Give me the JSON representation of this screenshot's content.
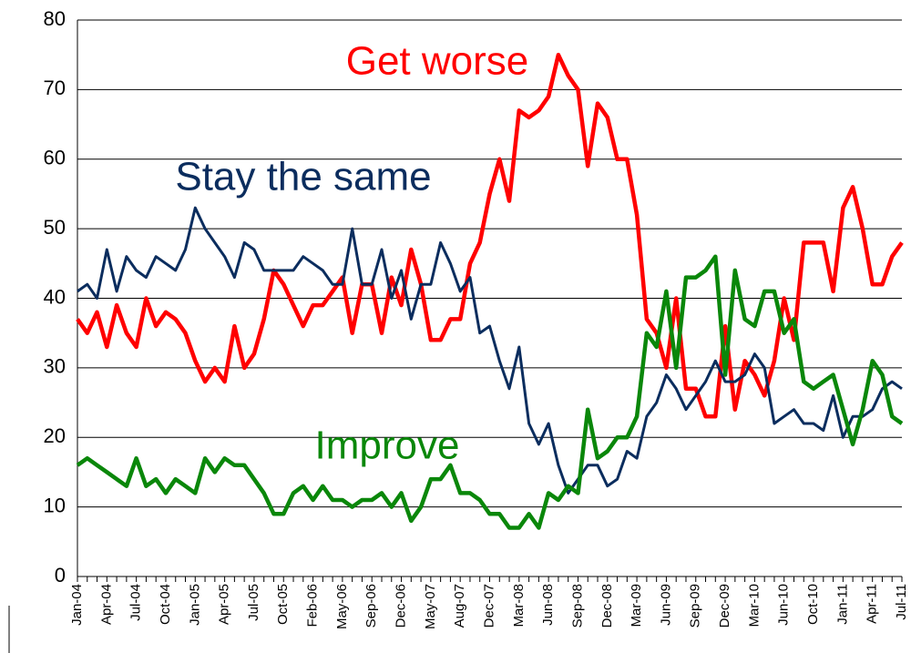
{
  "chart_data": {
    "type": "line",
    "categories": [
      "Jan-04",
      null,
      null,
      "Apr-04",
      null,
      null,
      "Jul-04",
      null,
      null,
      "Oct-04",
      null,
      null,
      "Jan-05",
      null,
      null,
      "Apr-05",
      null,
      null,
      "Jul-05",
      null,
      null,
      "Oct-05",
      null,
      null,
      "Feb-06",
      null,
      null,
      "May-06",
      null,
      null,
      "Sep-06",
      null,
      null,
      "Dec-06",
      null,
      null,
      "May-07",
      null,
      null,
      "Aug-07",
      null,
      null,
      "Dec-07",
      null,
      null,
      "Mar-08",
      null,
      null,
      "Jun-08",
      null,
      null,
      "Sep-08",
      null,
      null,
      "Dec-08",
      null,
      null,
      "Mar-09",
      null,
      null,
      "Jun-09",
      null,
      null,
      "Sep-09",
      null,
      null,
      "Dec-09",
      null,
      null,
      "Mar-10",
      null,
      null,
      "Jun-10",
      null,
      null,
      "Oct-10",
      null,
      null,
      "Jan-11",
      null,
      null,
      "Apr-11",
      null,
      null,
      "Jul-11"
    ],
    "series": [
      {
        "name": "Get worse",
        "color": "#ff0000",
        "values": [
          37,
          35,
          38,
          33,
          39,
          35,
          33,
          40,
          36,
          38,
          37,
          35,
          31,
          28,
          30,
          28,
          36,
          30,
          32,
          37,
          44,
          42,
          39,
          36,
          39,
          39,
          41,
          43,
          35,
          42,
          42,
          35,
          43,
          39,
          47,
          42,
          34,
          34,
          37,
          37,
          45,
          48,
          55,
          60,
          54,
          67,
          66,
          67,
          69,
          75,
          72,
          70,
          59,
          68,
          66,
          60,
          60,
          52,
          37,
          35,
          30,
          40,
          27,
          27,
          23,
          23,
          36,
          24,
          31,
          29,
          26,
          31,
          40,
          34,
          48,
          48,
          48,
          41,
          53,
          56,
          50,
          42,
          42,
          46,
          48
        ]
      },
      {
        "name": "Stay the same",
        "color": "#0b2d5e",
        "values": [
          41,
          42,
          40,
          47,
          41,
          46,
          44,
          43,
          46,
          45,
          44,
          47,
          53,
          50,
          48,
          46,
          43,
          48,
          47,
          44,
          44,
          44,
          44,
          46,
          45,
          44,
          42,
          42,
          50,
          42,
          42,
          47,
          40,
          44,
          37,
          42,
          42,
          48,
          45,
          41,
          43,
          35,
          36,
          31,
          27,
          33,
          22,
          19,
          22,
          16,
          12,
          14,
          16,
          16,
          13,
          14,
          18,
          17,
          23,
          25,
          29,
          27,
          24,
          26,
          28,
          31,
          28,
          28,
          29,
          32,
          30,
          22,
          23,
          24,
          22,
          22,
          21,
          26,
          20,
          23,
          23,
          24,
          27,
          28,
          27
        ]
      },
      {
        "name": "Improve",
        "color": "#0a870a",
        "values": [
          16,
          17,
          16,
          15,
          14,
          13,
          17,
          13,
          14,
          12,
          14,
          13,
          12,
          17,
          15,
          17,
          16,
          16,
          14,
          12,
          9,
          9,
          12,
          13,
          11,
          13,
          11,
          11,
          10,
          11,
          11,
          12,
          10,
          12,
          8,
          10,
          14,
          14,
          16,
          12,
          12,
          11,
          9,
          9,
          7,
          7,
          9,
          7,
          12,
          11,
          13,
          12,
          24,
          17,
          18,
          20,
          20,
          23,
          35,
          33,
          41,
          30,
          43,
          43,
          44,
          46,
          29,
          44,
          37,
          36,
          41,
          41,
          35,
          37,
          28,
          27,
          28,
          29,
          24,
          19,
          24,
          31,
          29,
          23,
          22
        ]
      }
    ],
    "ylim": [
      0,
      80
    ],
    "yticks": [
      0,
      10,
      20,
      30,
      40,
      50,
      60,
      70,
      80
    ],
    "grid": true
  }
}
